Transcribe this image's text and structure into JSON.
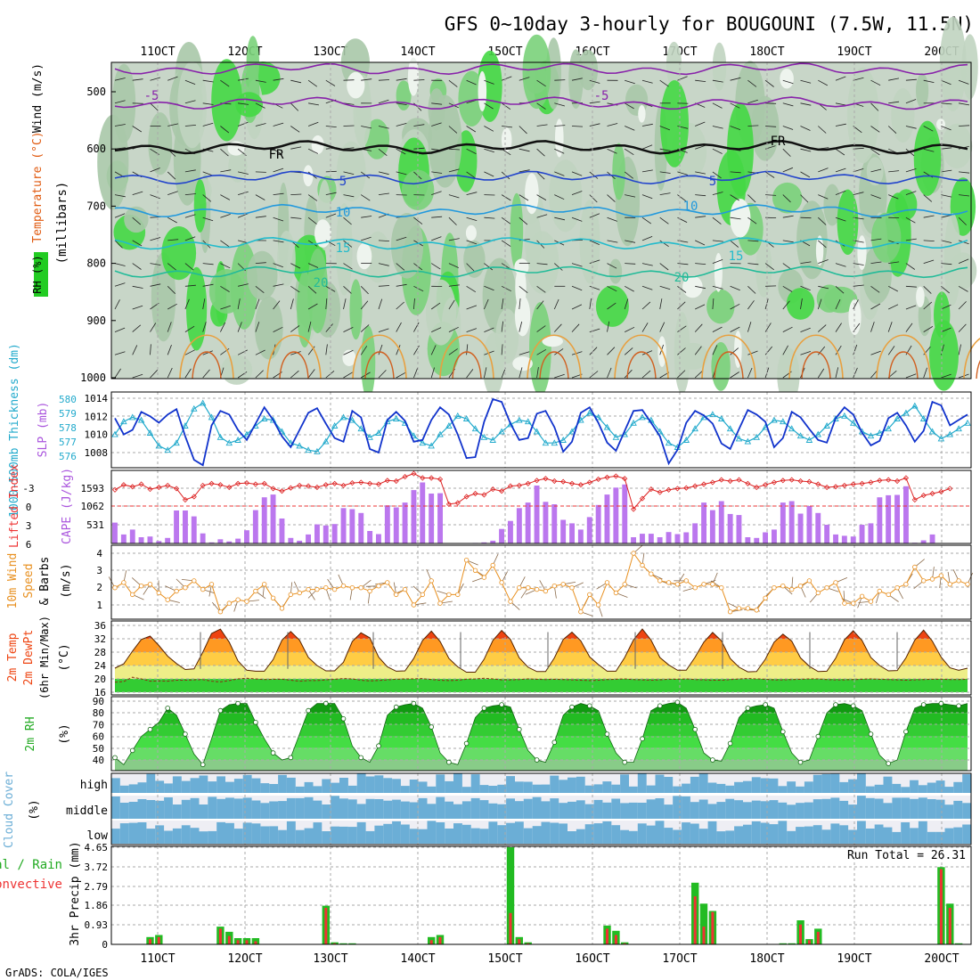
{
  "title": "GFS 0~10day 3-hourly for BOUGOUNI (7.5W, 11.5N)",
  "footer": "GrADS: COLA/IGES",
  "colors": {
    "rh_green": "#33cc33",
    "grid": "#aaaaaa",
    "cape_bar": "#bb77ee",
    "precip_total": "#22bb22",
    "precip_conv": "#ee3333",
    "cloud_blue": "#6baed6",
    "slp_line": "#1133cc",
    "thickness_line": "#22aacc",
    "wind_line": "#e89020"
  },
  "time_axis": {
    "labels": [
      "11OCT",
      "12OCT",
      "13OCT",
      "14OCT",
      "15OCT",
      "16OCT",
      "17OCT",
      "18OCT",
      "19OCT",
      "20OCT"
    ]
  },
  "chart_data": [
    {
      "type": "heatmap",
      "panel": "upper_air",
      "ylabel_parts": [
        "RH (%)",
        "Temperature (°C)",
        "Wind (m/s)"
      ],
      "ylabel_units": "(millibars)",
      "y_ticks": [
        500,
        600,
        700,
        800,
        900,
        1000
      ],
      "ylim": [
        450,
        1000
      ],
      "isotherm_labels": [
        "-5",
        "-5",
        "FR",
        "FR",
        "5",
        "5",
        "10",
        "10",
        "15",
        "15",
        "20",
        "20"
      ]
    },
    {
      "type": "line",
      "panel": "slp_thickness",
      "ylabel_left": "1000-500mb Thickness (dm)",
      "ylabel_right": "SLP (mb)",
      "left_ticks": [
        "580",
        "579",
        "578",
        "577",
        "576"
      ],
      "right_ticks": [
        "1014",
        "1012",
        "1010",
        "1008"
      ],
      "slp_values": [
        1011.8,
        1010.0,
        1010.5,
        1012.5,
        1012.0,
        1011.3,
        1012.2,
        1012.8,
        1009.8,
        1007.2,
        1006.6,
        1011.0,
        1012.6,
        1012.2,
        1010.5,
        1009.4,
        1011.2,
        1013.0,
        1011.6,
        1009.8,
        1008.6,
        1010.5,
        1012.4,
        1012.9,
        1011.2,
        1009.6,
        1009.2,
        1012.6,
        1011.9,
        1008.4,
        1008.0,
        1011.6,
        1012.5,
        1011.5,
        1009.2,
        1009.4,
        1011.6,
        1013.0,
        1012.2,
        1010.0,
        1007.4,
        1007.5,
        1011.4,
        1013.9,
        1013.6,
        1011.2,
        1009.4,
        1009.6,
        1012.3,
        1012.6,
        1010.8,
        1008.1,
        1009.2,
        1012.4,
        1013.0,
        1011.3,
        1009.1,
        1008.2,
        1010.4,
        1012.6,
        1012.7,
        1011.3,
        1009.8,
        1006.8,
        1008.3,
        1011.3,
        1012.6,
        1012.1,
        1011.2,
        1009.0,
        1008.4,
        1010.6,
        1012.7,
        1012.2,
        1011.4,
        1008.6,
        1009.6,
        1012.5,
        1011.9,
        1010.6,
        1009.4,
        1009.1,
        1011.8,
        1013.0,
        1012.2,
        1010.2,
        1008.8,
        1009.3,
        1011.8,
        1012.4,
        1011.0,
        1009.2,
        1010.4,
        1013.6,
        1013.2,
        1011.0,
        1011.6,
        1012.2
      ],
      "thickness_values": [
        577.4,
        578.3,
        578.6,
        578.4,
        577.5,
        576.6,
        576.3,
        576.8,
        578.0,
        579.2,
        579.6,
        578.6,
        577.2,
        576.8,
        577.0,
        577.4,
        578.0,
        578.5,
        578.4,
        577.6,
        576.8,
        576.6,
        576.3,
        576.2,
        576.9,
        578.0,
        578.6,
        578.4,
        577.8,
        577.2,
        577.5,
        578.3,
        578.5,
        578.2,
        577.3,
        576.8,
        576.6,
        577.4,
        578.0,
        578.7,
        578.5,
        577.8,
        577.2,
        577.0,
        577.6,
        578.1,
        578.4,
        578.3,
        577.6,
        576.8,
        576.8,
        577.0,
        577.6,
        578.4,
        578.9,
        578.6,
        577.9,
        577.2,
        577.4,
        578.2,
        578.6,
        578.4,
        577.6,
        576.8,
        576.5,
        577.0,
        577.8,
        578.6,
        578.8,
        578.5,
        577.8,
        577.1,
        576.9,
        577.2,
        577.9,
        578.4,
        578.3,
        577.8,
        577.3,
        577.0,
        577.4,
        578.0,
        578.5,
        578.7,
        578.2,
        577.6,
        577.3,
        577.5,
        577.8,
        578.5,
        578.9,
        579.4,
        578.5,
        577.6,
        577.1,
        577.4,
        577.8,
        578.2
      ]
    },
    {
      "type": "bar",
      "panel": "lifted_index_cape",
      "ylabel_left": "Lifted Index",
      "ylabel_right": "CAPE (J/kg)",
      "li_ticks": [
        "-3",
        "0",
        "3",
        "6"
      ],
      "cape_ticks": [
        "1593",
        "1062",
        "531"
      ],
      "cape_values": [
        600,
        260,
        400,
        180,
        200,
        70,
        160,
        950,
        950,
        780,
        290,
        30,
        120,
        60,
        140,
        380,
        960,
        1330,
        1410,
        720,
        160,
        80,
        260,
        550,
        520,
        560,
        1020,
        990,
        880,
        360,
        270,
        1100,
        1040,
        1180,
        1540,
        1760,
        1440,
        1450,
        10,
        10,
        10,
        15,
        30,
        80,
        420,
        650,
        1020,
        1180,
        1670,
        1200,
        1130,
        680,
        580,
        400,
        760,
        1110,
        1410,
        1610,
        1700,
        180,
        280,
        280,
        180,
        330,
        270,
        320,
        580,
        1180,
        960,
        1220,
        850,
        820,
        180,
        160,
        320,
        400,
        1180,
        1220,
        860,
        1080,
        880,
        540,
        260,
        220,
        200,
        540,
        580,
        1330,
        1390,
        1400,
        1650,
        20,
        90,
        260
      ],
      "li_values": [
        -2.6,
        -3.4,
        -3.1,
        -3.5,
        -2.7,
        -3.0,
        -3.3,
        -2.8,
        -1.0,
        -1.5,
        -3.3,
        -3.6,
        -3.4,
        -3.0,
        -3.6,
        -3.7,
        -3.5,
        -3.6,
        -2.8,
        -2.4,
        -2.9,
        -3.3,
        -3.2,
        -3.0,
        -3.4,
        -3.6,
        -3.3,
        -3.7,
        -3.8,
        -3.6,
        -3.5,
        -4.1,
        -4.0,
        -4.7,
        -5.2,
        -4.5,
        -4.5,
        -4.3,
        -0.3,
        -0.5,
        -1.5,
        -2.0,
        -1.8,
        -2.7,
        -2.4,
        -3.2,
        -3.3,
        -3.6,
        -4.1,
        -4.4,
        -4.0,
        -3.9,
        -3.6,
        -3.4,
        -3.8,
        -4.3,
        -4.6,
        -4.8,
        -4.4,
        0.5,
        -1.2,
        -2.7,
        -2.2,
        -2.6,
        -2.8,
        -2.9,
        -3.2,
        -3.5,
        -3.8,
        -4.2,
        -4.0,
        -4.2,
        -3.6,
        -3.0,
        -3.4,
        -3.8,
        -4.1,
        -4.2,
        -4.0,
        -3.9,
        -3.5,
        -3.0,
        -3.1,
        -3.3,
        -3.5,
        -3.6,
        -3.8,
        -4.1,
        -4.2,
        -4.0,
        -4.5,
        -1.0,
        -1.7,
        -2.0,
        -2.3,
        -2.8
      ]
    },
    {
      "type": "line",
      "panel": "wind10m",
      "ylabel_parts": [
        "10m Wind",
        "Speed",
        "& Barbs",
        "(m/s)"
      ],
      "y_ticks": [
        "4",
        "3",
        "2",
        "1"
      ],
      "values": [
        2.0,
        2.3,
        1.6,
        2.1,
        2.2,
        1.7,
        1.3,
        1.8,
        2.0,
        2.4,
        1.9,
        2.2,
        0.6,
        1.1,
        1.3,
        1.2,
        1.8,
        2.2,
        1.4,
        0.8,
        1.6,
        1.7,
        1.9,
        1.9,
        2.0,
        1.9,
        2.1,
        2.0,
        2.0,
        1.8,
        2.1,
        2.3,
        1.6,
        1.9,
        1.0,
        1.6,
        2.4,
        1.1,
        1.6,
        1.6,
        3.6,
        3.0,
        2.6,
        3.3,
        2.3,
        1.2,
        2.0,
        2.0,
        1.9,
        1.8,
        2.1,
        2.2,
        2.0,
        0.6,
        1.6,
        1.0,
        2.3,
        1.7,
        2.2,
        4.0,
        3.3,
        2.8,
        2.4,
        2.3,
        2.2,
        2.4,
        2.0,
        2.2,
        2.2,
        2.0,
        0.6,
        0.8,
        0.8,
        0.7,
        1.4,
        2.0,
        2.1,
        1.9,
        2.1,
        2.4,
        1.7,
        2.0,
        2.3,
        1.1,
        1.1,
        1.5,
        1.2,
        1.8,
        1.6,
        2.0,
        2.2,
        3.2,
        2.4,
        2.5,
        2.7,
        2.2,
        2.4,
        2.2
      ]
    },
    {
      "type": "area",
      "panel": "temp_dewpt",
      "ylabel_parts": [
        "2m Temp",
        "2m DewPt",
        "(6hr Min/Max)",
        "(°C)"
      ],
      "y_ticks": [
        "36",
        "32",
        "28",
        "24",
        "20",
        "16"
      ],
      "temp_values": [
        23.2,
        24.5,
        28.3,
        31.8,
        32.8,
        30.0,
        26.8,
        24.6,
        22.8,
        23.0,
        28.0,
        33.6,
        34.9,
        31.0,
        25.4,
        22.6,
        22.3,
        22.3,
        25.8,
        31.6,
        34.2,
        31.6,
        26.4,
        24.0,
        22.4,
        22.4,
        25.0,
        31.2,
        33.8,
        32.3,
        26.5,
        23.6,
        22.3,
        22.4,
        26.1,
        31.5,
        34.3,
        31.2,
        26.1,
        23.6,
        22.0,
        22.0,
        25.9,
        31.5,
        34.5,
        31.8,
        26.3,
        23.5,
        22.2,
        22.2,
        26.3,
        31.8,
        34.0,
        31.4,
        26.6,
        24.3,
        22.3,
        22.3,
        26.4,
        31.7,
        34.9,
        31.6,
        26.4,
        24.2,
        22.6,
        22.6,
        26.5,
        31.0,
        33.9,
        31.4,
        26.1,
        23.5,
        22.1,
        22.2,
        25.9,
        31.0,
        33.4,
        31.3,
        26.3,
        23.8,
        22.2,
        22.3,
        26.2,
        31.7,
        34.4,
        31.5,
        26.4,
        24.0,
        22.4,
        22.5,
        26.3,
        31.6,
        34.6,
        31.3,
        26.5,
        23.3,
        22.6,
        23.2
      ],
      "dewpt_values": [
        19.0,
        19.2,
        20.5,
        20.0,
        19.3,
        19.4,
        19.3,
        19.6,
        19.6,
        19.7,
        19.8,
        19.3,
        19.1,
        19.5,
        20.0,
        20.2,
        20.0,
        19.8,
        19.9,
        19.9,
        19.6,
        19.3,
        19.5,
        19.5,
        19.7,
        19.9,
        20.1,
        20.0,
        19.6,
        19.4,
        19.5,
        19.7,
        19.9,
        20.0,
        20.0,
        20.1,
        19.8,
        19.6,
        19.5,
        19.6,
        19.9,
        20.0,
        20.2,
        20.0,
        19.7,
        19.7,
        19.8,
        20.0,
        19.9,
        19.8,
        19.9,
        19.8,
        19.7,
        19.6,
        19.5,
        19.6,
        19.8,
        19.9,
        20.0,
        19.8,
        19.7,
        19.6,
        19.7,
        19.9,
        19.9,
        20.0,
        19.8,
        19.7,
        19.6,
        19.6,
        19.8,
        20.0,
        20.1,
        20.0,
        19.9,
        19.7,
        19.7,
        19.8,
        19.9,
        20.0,
        20.0,
        19.8,
        19.7,
        19.7,
        19.8,
        19.9,
        20.0,
        19.9,
        19.8,
        19.7,
        19.6,
        19.7,
        19.8,
        19.9,
        19.9,
        19.8,
        19.8,
        19.9
      ]
    },
    {
      "type": "area",
      "panel": "rh2m",
      "ylabel_parts": [
        "2m RH",
        "(%)"
      ],
      "y_ticks": [
        "90",
        "80",
        "70",
        "60",
        "50",
        "40"
      ],
      "values": [
        42,
        36,
        48,
        60,
        66,
        72,
        84,
        78,
        62,
        45,
        36,
        58,
        82,
        87,
        88,
        88,
        72,
        58,
        46,
        40,
        42,
        62,
        82,
        88,
        88,
        88,
        75,
        52,
        42,
        38,
        52,
        78,
        85,
        87,
        88,
        84,
        68,
        46,
        38,
        36,
        54,
        76,
        84,
        86,
        87,
        85,
        66,
        48,
        40,
        38,
        55,
        78,
        85,
        88,
        86,
        82,
        62,
        46,
        38,
        38,
        58,
        82,
        86,
        88,
        89,
        84,
        66,
        46,
        40,
        39,
        54,
        76,
        84,
        86,
        87,
        84,
        64,
        46,
        38,
        40,
        60,
        80,
        87,
        88,
        86,
        82,
        62,
        44,
        37,
        40,
        64,
        84,
        87,
        88,
        88,
        87,
        86,
        88
      ]
    },
    {
      "type": "table",
      "panel": "cloud_cover",
      "ylabel_parts": [
        "Cloud Cover",
        "(%)"
      ],
      "levels": [
        "high",
        "middle",
        "low"
      ]
    },
    {
      "type": "bar",
      "panel": "precip",
      "ylabel_left_parts": [
        "Total / Rain",
        "Convective"
      ],
      "ylabel": "3hr Precip (mm)",
      "y_ticks": [
        "4.65",
        "3.72",
        "2.79",
        "1.86",
        "0.93",
        "0"
      ],
      "run_total": "Run Total = 26.31",
      "total_values": [
        0,
        0,
        0,
        0,
        0.35,
        0.45,
        0,
        0,
        0,
        0,
        0,
        0,
        0.85,
        0.6,
        0.3,
        0.3,
        0.3,
        0,
        0,
        0,
        0,
        0,
        0,
        0,
        1.85,
        0.1,
        0.05,
        0.05,
        0,
        0,
        0,
        0,
        0,
        0,
        0,
        0,
        0.35,
        0.45,
        0,
        0,
        0,
        0,
        0,
        0,
        0,
        4.65,
        0.35,
        0.1,
        0,
        0,
        0,
        0,
        0,
        0,
        0,
        0,
        0.9,
        0.65,
        0.1,
        0,
        0,
        0,
        0,
        0,
        0,
        0,
        2.95,
        1.95,
        1.6,
        0,
        0,
        0,
        0,
        0,
        0,
        0,
        0.05,
        0.05,
        1.15,
        0.25,
        0.75,
        0,
        0,
        0,
        0,
        0,
        0,
        0,
        0,
        0,
        0,
        0,
        0,
        0,
        3.7,
        1.95,
        0.05,
        0
      ],
      "conv_values": [
        0,
        0,
        0,
        0,
        0.25,
        0.35,
        0,
        0,
        0,
        0,
        0,
        0,
        0.75,
        0.4,
        0.2,
        0.2,
        0.15,
        0,
        0,
        0,
        0,
        0,
        0,
        0,
        1.75,
        0.05,
        0,
        0,
        0,
        0,
        0,
        0,
        0,
        0,
        0,
        0,
        0.2,
        0.35,
        0,
        0,
        0,
        0,
        0,
        0,
        0,
        1.5,
        0.25,
        0.05,
        0,
        0,
        0,
        0,
        0,
        0,
        0,
        0,
        0.75,
        0.45,
        0.05,
        0,
        0,
        0,
        0,
        0,
        0,
        0,
        2.3,
        0.85,
        1.55,
        0,
        0,
        0,
        0,
        0,
        0,
        0,
        0,
        0,
        0.95,
        0.2,
        0.6,
        0,
        0,
        0,
        0,
        0,
        0,
        0,
        0,
        0,
        0,
        0,
        0,
        0,
        3.6,
        1.75,
        0,
        0
      ]
    }
  ]
}
